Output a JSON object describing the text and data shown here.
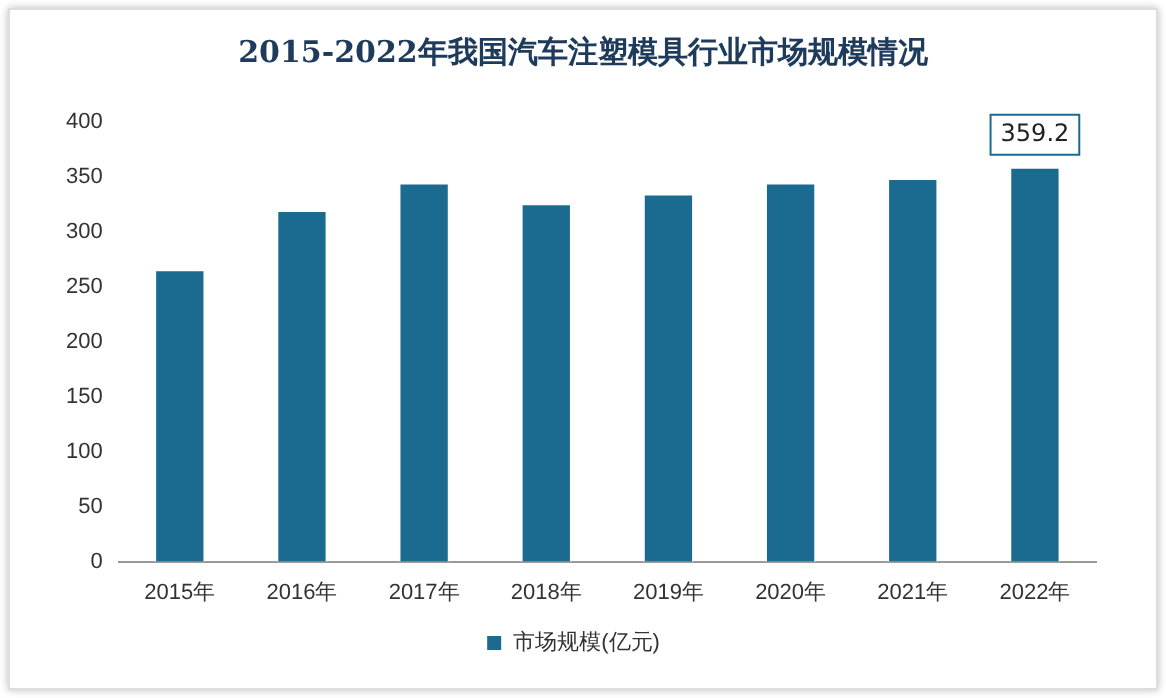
{
  "chart_data": {
    "type": "bar",
    "title": "2015-2022年我国汽车注塑模具行业市场规模情况",
    "categories": [
      "2015年",
      "2016年",
      "2017年",
      "2018年",
      "2019年",
      "2020年",
      "2021年",
      "2022年"
    ],
    "series": [
      {
        "name": "市场规模(亿元)",
        "color": "#1b6a8f",
        "values": [
          266,
          320,
          345,
          326,
          335,
          345,
          349,
          359.2
        ],
        "value_labels": [
          null,
          null,
          null,
          null,
          null,
          null,
          null,
          "359.2"
        ]
      }
    ],
    "ylim": [
      0,
      400
    ],
    "yticks": [
      0,
      50,
      100,
      150,
      200,
      250,
      300,
      350,
      400
    ],
    "grid": false,
    "legend": "bottom"
  }
}
